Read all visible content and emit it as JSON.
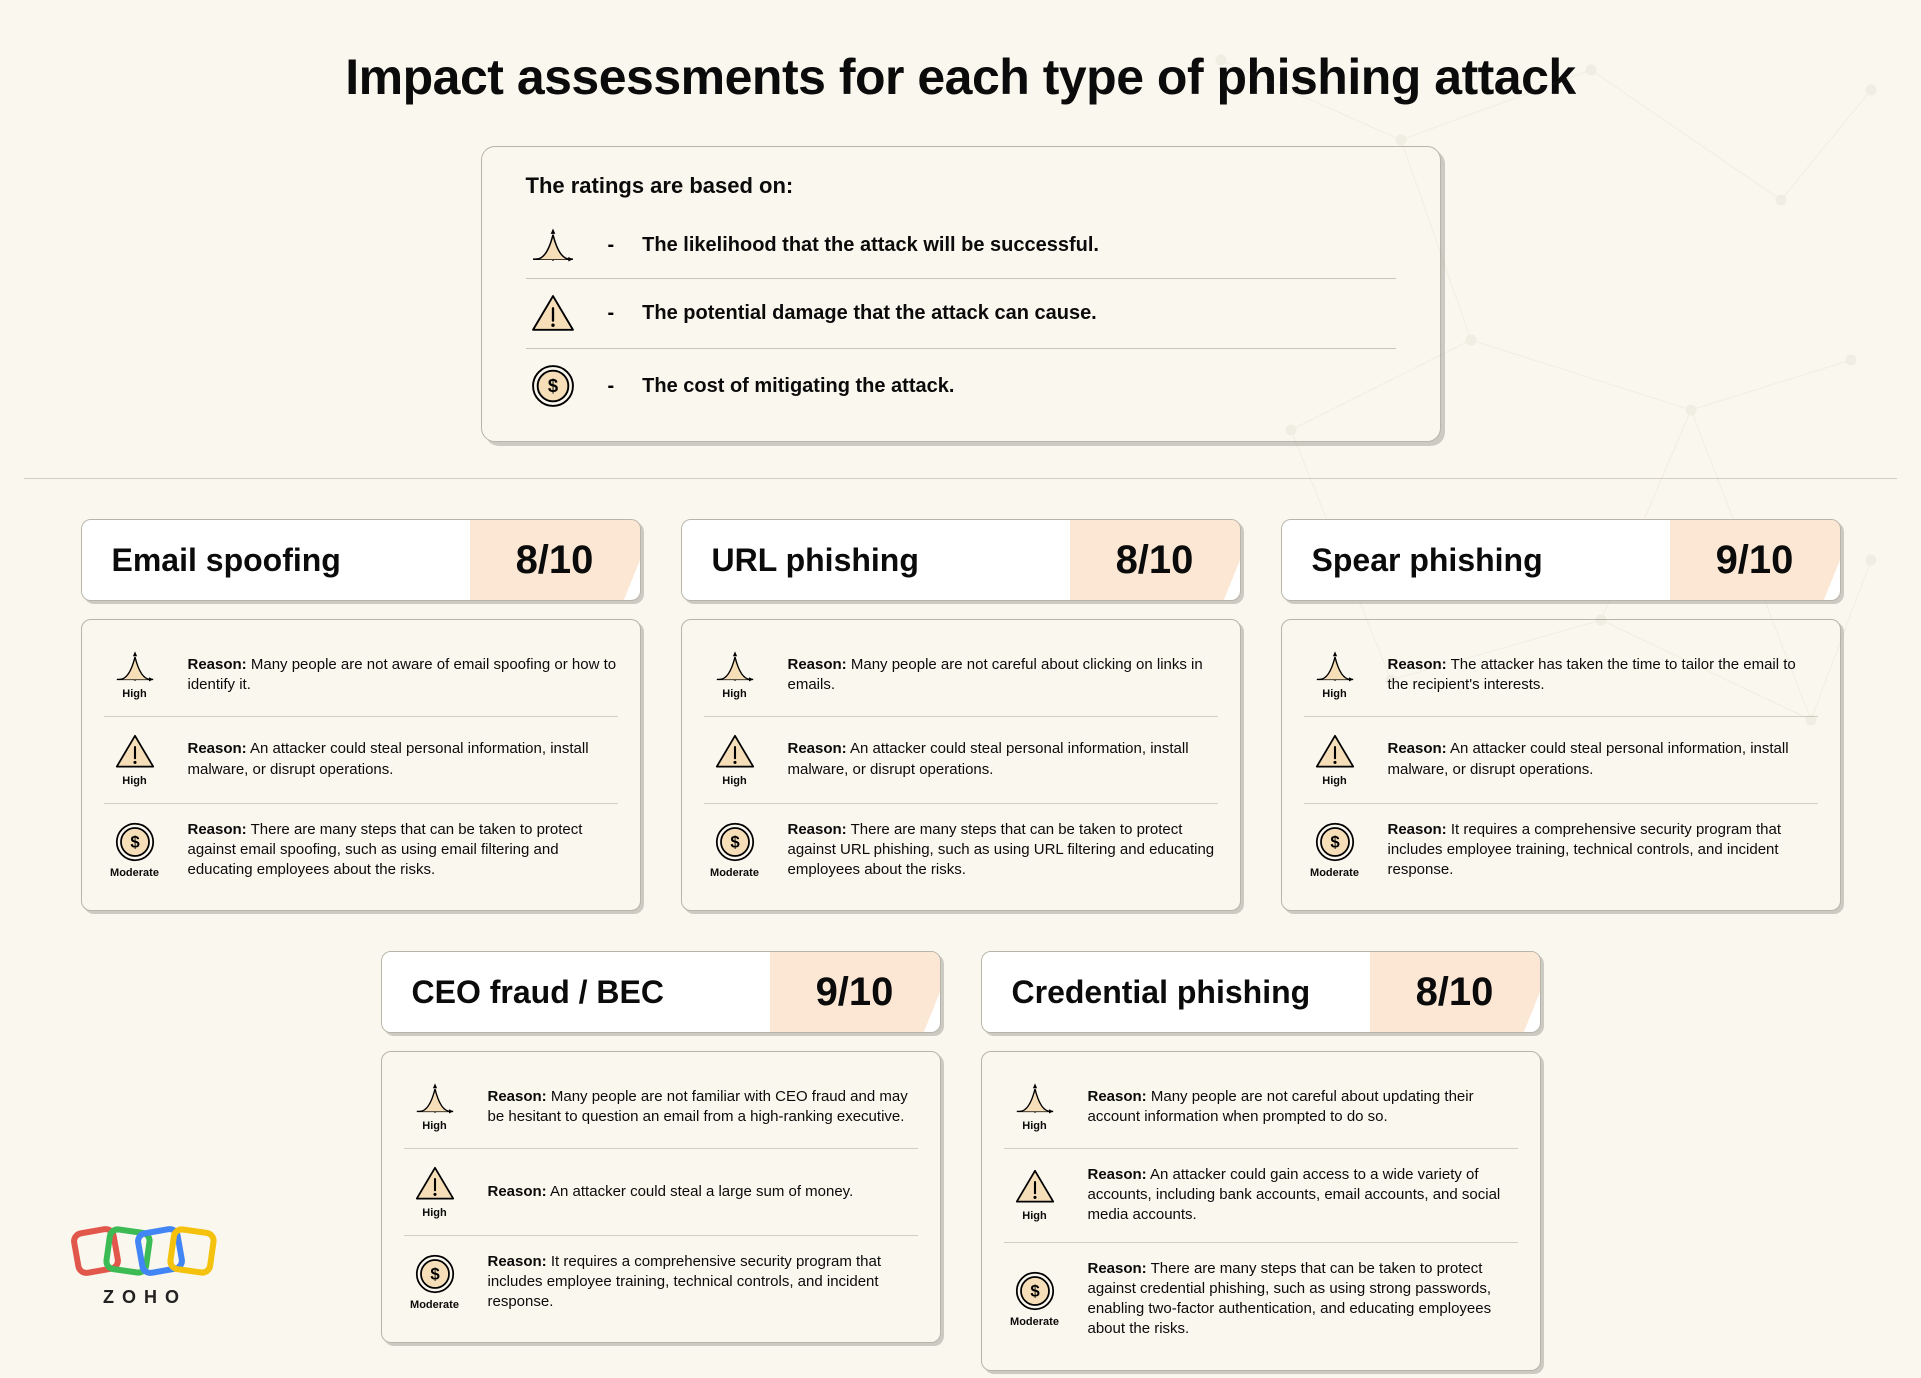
{
  "colors": {
    "background": "#faf7ee",
    "card_white": "#ffffff",
    "score_fill": "#fbe7d4",
    "icon_fill": "#f5deb8",
    "border": "#b8b4a8",
    "text": "#0b0b0b",
    "divider": "#d2cec0"
  },
  "typography": {
    "title_fontsize": 50,
    "card_title_fontsize": 32,
    "score_fontsize": 40,
    "body_fontsize": 15
  },
  "title": "Impact assessments for each type of phishing attack",
  "legend": {
    "heading": "The ratings are based on:",
    "items": [
      {
        "icon": "curve",
        "text": "The likelihood that the attack will be successful."
      },
      {
        "icon": "warn",
        "text": "The potential damage that the attack can cause."
      },
      {
        "icon": "coin",
        "text": "The cost of mitigating the attack."
      }
    ]
  },
  "reason_label": "Reason:",
  "cards": [
    {
      "title": "Email spoofing",
      "score": "8/10",
      "metrics": [
        {
          "icon": "curve",
          "level": "High",
          "reason": "Many people are not aware of email spoofing or how to identify it."
        },
        {
          "icon": "warn",
          "level": "High",
          "reason": "An attacker could steal personal information, install malware, or disrupt operations."
        },
        {
          "icon": "coin",
          "level": "Moderate",
          "reason": "There are many steps that can be taken to protect against email spoofing, such as using email filtering and educating employees about the risks."
        }
      ]
    },
    {
      "title": "URL phishing",
      "score": "8/10",
      "metrics": [
        {
          "icon": "curve",
          "level": "High",
          "reason": "Many people are not careful about clicking on links in emails."
        },
        {
          "icon": "warn",
          "level": "High",
          "reason": "An attacker could steal personal information, install malware, or disrupt operations."
        },
        {
          "icon": "coin",
          "level": "Moderate",
          "reason": "There are many steps that can be taken to protect against URL phishing, such as using URL filtering and educating employees about the risks."
        }
      ]
    },
    {
      "title": "Spear phishing",
      "score": "9/10",
      "metrics": [
        {
          "icon": "curve",
          "level": "High",
          "reason": "The attacker has taken the time to tailor the email to the recipient's interests."
        },
        {
          "icon": "warn",
          "level": "High",
          "reason": "An attacker could steal personal information, install malware, or disrupt operations."
        },
        {
          "icon": "coin",
          "level": "Moderate",
          "reason": "It requires a comprehensive security program that includes employee training, technical controls, and incident response."
        }
      ]
    },
    {
      "title": "CEO fraud / BEC",
      "score": "9/10",
      "metrics": [
        {
          "icon": "curve",
          "level": "High",
          "reason": "Many people are not familiar with CEO fraud and may be hesitant to question an email from a high-ranking executive."
        },
        {
          "icon": "warn",
          "level": "High",
          "reason": "An attacker could steal a large sum of money."
        },
        {
          "icon": "coin",
          "level": "Moderate",
          "reason": "It requires a comprehensive security program that includes employee training, technical controls, and incident response."
        }
      ]
    },
    {
      "title": "Credential phishing",
      "score": "8/10",
      "metrics": [
        {
          "icon": "curve",
          "level": "High",
          "reason": "Many people are not careful about updating their account information when prompted to do so."
        },
        {
          "icon": "warn",
          "level": "High",
          "reason": "An attacker could gain access to a wide variety of accounts, including bank accounts, email accounts, and social media accounts."
        },
        {
          "icon": "coin",
          "level": "Moderate",
          "reason": "There are many steps that can be taken to protect against credential phishing, such as using strong passwords, enabling two-factor authentication, and educating employees about the risks."
        }
      ]
    }
  ],
  "logo": {
    "text": "ZOHO",
    "colors": [
      "#e2574c",
      "#3cba54",
      "#4285f4",
      "#f4c20d"
    ]
  }
}
